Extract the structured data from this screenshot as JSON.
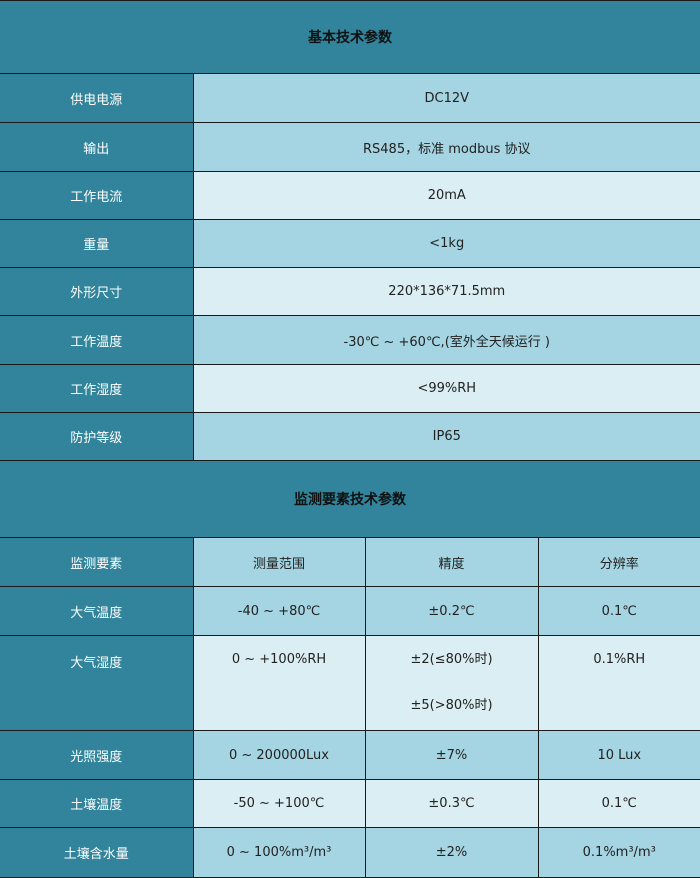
{
  "basic": {
    "title": "基本技术参数",
    "rows": [
      {
        "label": "供电电源",
        "value": "DC12V"
      },
      {
        "label": "输出",
        "value": "RS485，标准 modbus 协议"
      },
      {
        "label": "工作电流",
        "value": "20mA"
      },
      {
        "label": "重量",
        "value": "<1kg"
      },
      {
        "label": "外形尺寸",
        "value": "220*136*71.5mm"
      },
      {
        "label": "工作温度",
        "value": "-30℃ ~ +60℃,(室外全天候运行 )"
      },
      {
        "label": "工作湿度",
        "value": "<99%RH"
      },
      {
        "label": "防护等级",
        "value": "IP65"
      }
    ]
  },
  "monitor": {
    "title": "监测要素技术参数",
    "headers": [
      "监测要素",
      "测量范围",
      "精度",
      "分辨率"
    ],
    "rows": [
      {
        "element": "大气温度",
        "range": "-40 ~ +80℃",
        "accuracy": [
          "±0.2℃"
        ],
        "resolution": "0.1℃"
      },
      {
        "element": "大气湿度",
        "range": "0 ~ +100%RH",
        "accuracy": [
          "±2(≤80%时)",
          "±5(>80%时)"
        ],
        "resolution": "0.1%RH"
      },
      {
        "element": "光照强度",
        "range": "0 ~ 200000Lux",
        "accuracy": [
          "±7%"
        ],
        "resolution": "10 Lux"
      },
      {
        "element": "土壤温度",
        "range": "-50 ~ +100℃",
        "accuracy": [
          "±0.3℃"
        ],
        "resolution": "0.1℃"
      },
      {
        "element": "土壤含水量",
        "range": "0 ~ 100%m³/m³",
        "accuracy": [
          "±2%"
        ],
        "resolution": "0.1%m³/m³"
      }
    ]
  },
  "colors": {
    "header": "#31849b",
    "row_dark": "#a5d5e2",
    "row_light": "#dbeef3"
  }
}
